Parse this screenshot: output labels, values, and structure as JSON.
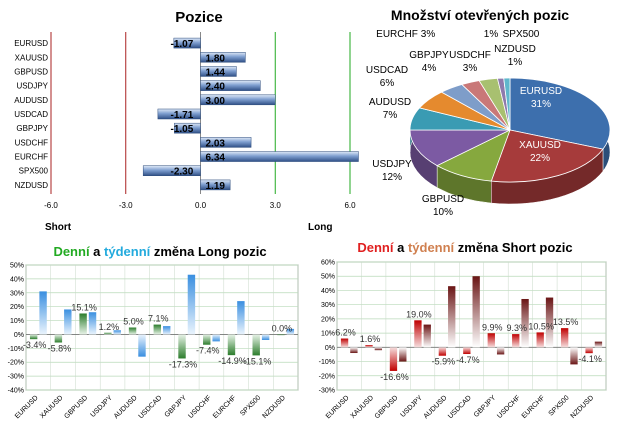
{
  "colors": {
    "long_daily": "#2e8b2e",
    "long_weekly": "#3a8fe0",
    "short_daily": "#cc1111",
    "short_weekly": "#7a2222",
    "red_word": "#e02020",
    "orange_word": "#d08050",
    "green_word": "#22aa22",
    "blue_word": "#22aadd"
  },
  "chart_data": [
    {
      "type": "bar",
      "orientation": "horizontal",
      "title": "Pozice",
      "categories": [
        "EURUSD",
        "XAUUSD",
        "GBPUSD",
        "USDJPY",
        "AUDUSD",
        "USDCAD",
        "GBPJPY",
        "USDCHF",
        "EURCHF",
        "SPX500",
        "NZDUSD"
      ],
      "values": [
        -1.07,
        1.8,
        1.44,
        2.4,
        3.0,
        -1.71,
        -1.05,
        2.03,
        6.34,
        -2.3,
        1.19
      ],
      "value_labels": [
        "-1.07",
        "1.80",
        "1.44",
        "2.40",
        "3.00",
        "-1.71",
        "-1.05",
        "2.03",
        "6.34",
        "-2.30",
        "1.19"
      ],
      "xlim": [
        -6.0,
        6.0
      ],
      "xticks": [
        "-6.0",
        "-3.0",
        "0.0",
        "3.0",
        "6.0"
      ],
      "left_label": "Short",
      "right_label": "Long"
    },
    {
      "type": "pie",
      "title": "Množství otevřených pozic",
      "slices": [
        {
          "name": "EURUSD",
          "value": 31,
          "label": "31%",
          "color": "#3d6fad"
        },
        {
          "name": "XAUUSD",
          "value": 22,
          "label": "22%",
          "color": "#a63b3b"
        },
        {
          "name": "GBPUSD",
          "value": 10,
          "label": "10%",
          "color": "#86a83e"
        },
        {
          "name": "USDJPY",
          "value": 12,
          "label": "12%",
          "color": "#7c5aa3"
        },
        {
          "name": "AUDUSD",
          "value": 7,
          "label": "7%",
          "color": "#3a9bb3"
        },
        {
          "name": "USDCAD",
          "value": 6,
          "label": "6%",
          "color": "#e58a2e"
        },
        {
          "name": "GBPJPY",
          "value": 4,
          "label": "4%",
          "color": "#7e9dc9"
        },
        {
          "name": "USDCHF",
          "value": 3,
          "label": "3%",
          "color": "#c97878"
        },
        {
          "name": "EURCHF",
          "value": 3,
          "label": "3%",
          "color": "#a8c070"
        },
        {
          "name": "SPX500",
          "value": 1,
          "label": "1%",
          "color": "#8e7aac"
        },
        {
          "name": "NZDUSD",
          "value": 1,
          "label": "1%",
          "color": "#5fb7cc"
        }
      ]
    },
    {
      "type": "bar",
      "title_parts": [
        "Denní",
        " a ",
        "týdenní",
        " změna Long pozic"
      ],
      "categories": [
        "EURUSD",
        "XAUUSD",
        "GBPUSD",
        "USDJPY",
        "AUDUSD",
        "USDCAD",
        "GBPJPY",
        "USDCHF",
        "EURCHF",
        "SPX500",
        "NZDUSD"
      ],
      "series": [
        {
          "values": [
            -3.4,
            -5.8,
            15.1,
            1.2,
            5.0,
            7.1,
            -17.3,
            -7.4,
            -14.9,
            -15.1,
            0.0
          ]
        },
        {
          "values": [
            31,
            18,
            16,
            3,
            -16,
            6,
            43,
            -5,
            24,
            -4,
            4
          ]
        }
      ],
      "data_labels": [
        "-3.4%",
        "-5.8%",
        "15.1%",
        "1.2%",
        "5.0%",
        "7.1%",
        "-17.3%",
        "-7.4%",
        "-14.9%",
        "-15.1%",
        "0.0%"
      ],
      "ylim": [
        -40,
        50
      ],
      "yticks": [
        "-40%",
        "-30%",
        "-20%",
        "-10%",
        "0%",
        "10%",
        "20%",
        "30%",
        "40%",
        "50%"
      ]
    },
    {
      "type": "bar",
      "title_parts": [
        "Denní",
        " a ",
        "týdenní",
        " změna Short pozic"
      ],
      "categories": [
        "EURUSD",
        "XAUUSD",
        "GBPUSD",
        "USDJPY",
        "AUDUSD",
        "USDCAD",
        "GBPJPY",
        "USDCHF",
        "EURCHF",
        "SPX500",
        "NZDUSD"
      ],
      "series": [
        {
          "values": [
            6.2,
            1.6,
            -16.6,
            19.0,
            -5.9,
            -4.7,
            9.9,
            9.3,
            10.5,
            13.5,
            -4.1
          ]
        },
        {
          "values": [
            -4,
            -2,
            -10,
            16,
            43,
            50,
            -5,
            34,
            35,
            -12,
            4
          ]
        }
      ],
      "data_labels": [
        "6.2%",
        "1.6%",
        "-16.6%",
        "19.0%",
        "-5.9%",
        "-4.7%",
        "9.9%",
        "9.3%",
        "10.5%",
        "13.5%",
        "-4.1%"
      ],
      "ylim": [
        -30,
        60
      ],
      "yticks": [
        "-30%",
        "-20%",
        "-10%",
        "0%",
        "10%",
        "20%",
        "30%",
        "40%",
        "50%",
        "60%"
      ]
    }
  ]
}
